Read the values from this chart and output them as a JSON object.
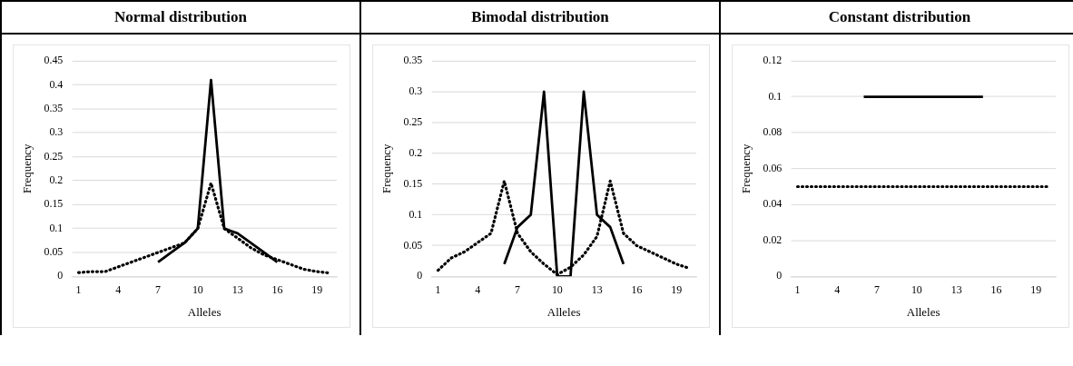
{
  "chart_data": [
    {
      "type": "line",
      "title": "Normal distribution",
      "xlabel": "Alleles",
      "ylabel": "Frequency",
      "categories": [
        "1",
        null,
        null,
        "4",
        null,
        null,
        "7",
        null,
        null,
        "10",
        null,
        null,
        "13",
        null,
        null,
        "16",
        null,
        null,
        "19",
        null
      ],
      "series": [
        {
          "color": "#000000",
          "line_style": "solid",
          "values": [
            null,
            null,
            null,
            null,
            null,
            null,
            0.03,
            0.05,
            0.07,
            0.1,
            0.41,
            0.1,
            0.09,
            0.07,
            0.05,
            0.03,
            null,
            null,
            null,
            null
          ]
        },
        {
          "color": "#000000",
          "line_style": "dotted",
          "values": [
            0.008,
            0.01,
            0.01,
            0.02,
            0.03,
            0.04,
            0.05,
            0.06,
            0.07,
            0.1,
            0.195,
            0.1,
            0.08,
            0.06,
            0.045,
            0.035,
            0.025,
            0.015,
            0.01,
            0.007
          ]
        }
      ],
      "ylim": [
        0,
        0.45
      ],
      "yticks": [
        0,
        0.05,
        0.1,
        0.15,
        0.2,
        0.25,
        0.3,
        0.35,
        0.4,
        0.45
      ],
      "grid": "y",
      "legend": false,
      "marker": "none"
    },
    {
      "type": "line",
      "title": "Bimodal distribution",
      "xlabel": "Alleles",
      "ylabel": "Frequency",
      "categories": [
        "1",
        null,
        null,
        "4",
        null,
        null,
        "7",
        null,
        null,
        "10",
        null,
        null,
        "13",
        null,
        null,
        "16",
        null,
        null,
        "19",
        null
      ],
      "series": [
        {
          "color": "#000000",
          "line_style": "solid",
          "values": [
            null,
            null,
            null,
            null,
            null,
            0.02,
            0.08,
            0.1,
            0.3,
            0,
            0,
            0.3,
            0.1,
            0.08,
            0.02,
            null,
            null,
            null,
            null,
            null
          ]
        },
        {
          "color": "#000000",
          "line_style": "dotted",
          "values": [
            0.01,
            0.03,
            0.04,
            0.055,
            0.07,
            0.155,
            0.07,
            0.04,
            0.02,
            0.003,
            0.015,
            0.035,
            0.065,
            0.155,
            0.07,
            0.05,
            0.04,
            0.03,
            0.02,
            0.013
          ]
        }
      ],
      "ylim": [
        0,
        0.35
      ],
      "yticks": [
        0,
        0.05,
        0.1,
        0.15,
        0.2,
        0.25,
        0.3,
        0.35
      ],
      "grid": "y",
      "legend": false,
      "marker": "none"
    },
    {
      "type": "line",
      "title": "Constant distribution",
      "xlabel": "Alleles",
      "ylabel": "Frequency",
      "categories": [
        "1",
        null,
        null,
        "4",
        null,
        null,
        "7",
        null,
        null,
        "10",
        null,
        null,
        "13",
        null,
        null,
        "16",
        null,
        null,
        "19",
        null
      ],
      "series": [
        {
          "color": "#000000",
          "line_style": "solid",
          "values": [
            null,
            null,
            null,
            null,
            null,
            0.1,
            0.1,
            0.1,
            0.1,
            0.1,
            0.1,
            0.1,
            0.1,
            0.1,
            0.1,
            null,
            null,
            null,
            null,
            null
          ]
        },
        {
          "color": "#000000",
          "line_style": "dotted",
          "values": [
            0.05,
            0.05,
            0.05,
            0.05,
            0.05,
            0.05,
            0.05,
            0.05,
            0.05,
            0.05,
            0.05,
            0.05,
            0.05,
            0.05,
            0.05,
            0.05,
            0.05,
            0.05,
            0.05,
            0.05
          ]
        }
      ],
      "ylim": [
        0,
        0.12
      ],
      "yticks": [
        0,
        0.02,
        0.04,
        0.06,
        0.08,
        0.1,
        0.12
      ],
      "grid": "y",
      "legend": false,
      "marker": "none"
    }
  ]
}
